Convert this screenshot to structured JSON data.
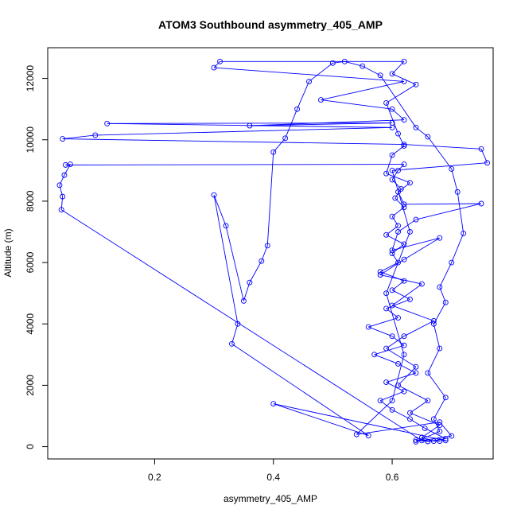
{
  "chart_data": {
    "type": "line",
    "title": "ATOM3 Southbound asymmetry_405_AMP",
    "xlabel": "asymmetry_405_AMP",
    "ylabel": "Altitude (m)",
    "xlim": [
      0.02,
      0.77
    ],
    "ylim": [
      -400,
      13000
    ],
    "x_ticks": [
      "0.2",
      "0.4",
      "0.6"
    ],
    "y_ticks": [
      "0",
      "2000",
      "4000",
      "6000",
      "8000",
      "10000",
      "12000"
    ],
    "x_tick_values": [
      0.2,
      0.4,
      0.6
    ],
    "y_tick_values": [
      0,
      2000,
      4000,
      6000,
      8000,
      10000,
      12000
    ],
    "grid": false,
    "legend": "none",
    "marker": "open-circle",
    "series": [
      {
        "color": "#0000ff",
        "points": [
          [
            0.68,
            180
          ],
          [
            0.64,
            210
          ],
          [
            0.66,
            170
          ],
          [
            0.69,
            260
          ],
          [
            0.655,
            600
          ],
          [
            0.63,
            900
          ],
          [
            0.6,
            1200
          ],
          [
            0.58,
            1500
          ],
          [
            0.62,
            1800
          ],
          [
            0.59,
            2100
          ],
          [
            0.64,
            2400
          ],
          [
            0.61,
            2700
          ],
          [
            0.57,
            3000
          ],
          [
            0.62,
            3300
          ],
          [
            0.6,
            3600
          ],
          [
            0.56,
            3900
          ],
          [
            0.61,
            4200
          ],
          [
            0.59,
            4500
          ],
          [
            0.63,
            4800
          ],
          [
            0.6,
            5100
          ],
          [
            0.62,
            5400
          ],
          [
            0.58,
            5700
          ],
          [
            0.61,
            6000
          ],
          [
            0.6,
            6300
          ],
          [
            0.62,
            6600
          ],
          [
            0.59,
            6900
          ],
          [
            0.61,
            7200
          ],
          [
            0.6,
            7500
          ],
          [
            0.62,
            7800
          ],
          [
            0.605,
            8100
          ],
          [
            0.615,
            8400
          ],
          [
            0.6,
            8700
          ],
          [
            0.61,
            9000
          ],
          [
            0.62,
            9200
          ],
          [
            0.05,
            9180
          ],
          [
            0.058,
            9200
          ],
          [
            0.048,
            8850
          ],
          [
            0.04,
            8520
          ],
          [
            0.045,
            8150
          ],
          [
            0.043,
            7720
          ],
          [
            0.65,
            200
          ],
          [
            0.7,
            350
          ],
          [
            0.68,
            800
          ],
          [
            0.54,
            400
          ],
          [
            0.6,
            1500
          ],
          [
            0.62,
            3000
          ],
          [
            0.59,
            5000
          ],
          [
            0.63,
            7000
          ],
          [
            0.6,
            9000
          ],
          [
            0.76,
            9250
          ],
          [
            0.75,
            9700
          ],
          [
            0.62,
            9850
          ],
          [
            0.045,
            10030
          ],
          [
            0.1,
            10150
          ],
          [
            0.6,
            10400
          ],
          [
            0.12,
            10530
          ],
          [
            0.6,
            10550
          ],
          [
            0.36,
            10460
          ],
          [
            0.62,
            10650
          ],
          [
            0.6,
            11000
          ],
          [
            0.48,
            11300
          ],
          [
            0.62,
            11900
          ],
          [
            0.3,
            12350
          ],
          [
            0.31,
            12550
          ],
          [
            0.62,
            12550
          ],
          [
            0.6,
            12150
          ],
          [
            0.64,
            11800
          ],
          [
            0.59,
            11200
          ],
          [
            0.61,
            10200
          ],
          [
            0.62,
            9800
          ],
          [
            0.6,
            9500
          ],
          [
            0.59,
            8900
          ],
          [
            0.63,
            8600
          ],
          [
            0.61,
            8300
          ],
          [
            0.62,
            7900
          ],
          [
            0.75,
            7920
          ],
          [
            0.64,
            7400
          ],
          [
            0.61,
            7000
          ],
          [
            0.6,
            6400
          ],
          [
            0.68,
            6800
          ],
          [
            0.62,
            6100
          ],
          [
            0.58,
            5600
          ],
          [
            0.65,
            5300
          ],
          [
            0.6,
            4600
          ],
          [
            0.67,
            4100
          ],
          [
            0.62,
            3600
          ],
          [
            0.59,
            3200
          ],
          [
            0.64,
            2600
          ],
          [
            0.61,
            2000
          ],
          [
            0.66,
            1500
          ],
          [
            0.63,
            1100
          ],
          [
            0.68,
            700
          ],
          [
            0.65,
            300
          ],
          [
            0.67,
            180
          ],
          [
            0.69,
            200
          ],
          [
            0.4,
            1400
          ],
          [
            0.56,
            360
          ],
          [
            0.33,
            3350
          ],
          [
            0.34,
            4000
          ],
          [
            0.3,
            8200
          ],
          [
            0.32,
            7200
          ],
          [
            0.35,
            4750
          ],
          [
            0.36,
            5350
          ],
          [
            0.38,
            6050
          ],
          [
            0.39,
            6550
          ],
          [
            0.4,
            9600
          ],
          [
            0.42,
            10050
          ],
          [
            0.44,
            11000
          ],
          [
            0.46,
            11900
          ],
          [
            0.5,
            12500
          ],
          [
            0.52,
            12550
          ],
          [
            0.55,
            12400
          ],
          [
            0.58,
            12100
          ],
          [
            0.64,
            10400
          ],
          [
            0.66,
            10100
          ],
          [
            0.7,
            9050
          ],
          [
            0.71,
            8300
          ],
          [
            0.72,
            6950
          ],
          [
            0.7,
            6000
          ],
          [
            0.68,
            5200
          ],
          [
            0.69,
            4700
          ],
          [
            0.67,
            4000
          ],
          [
            0.68,
            3200
          ],
          [
            0.66,
            2400
          ],
          [
            0.69,
            1600
          ],
          [
            0.67,
            900
          ],
          [
            0.68,
            500
          ],
          [
            0.64,
            160
          ]
        ]
      }
    ]
  }
}
